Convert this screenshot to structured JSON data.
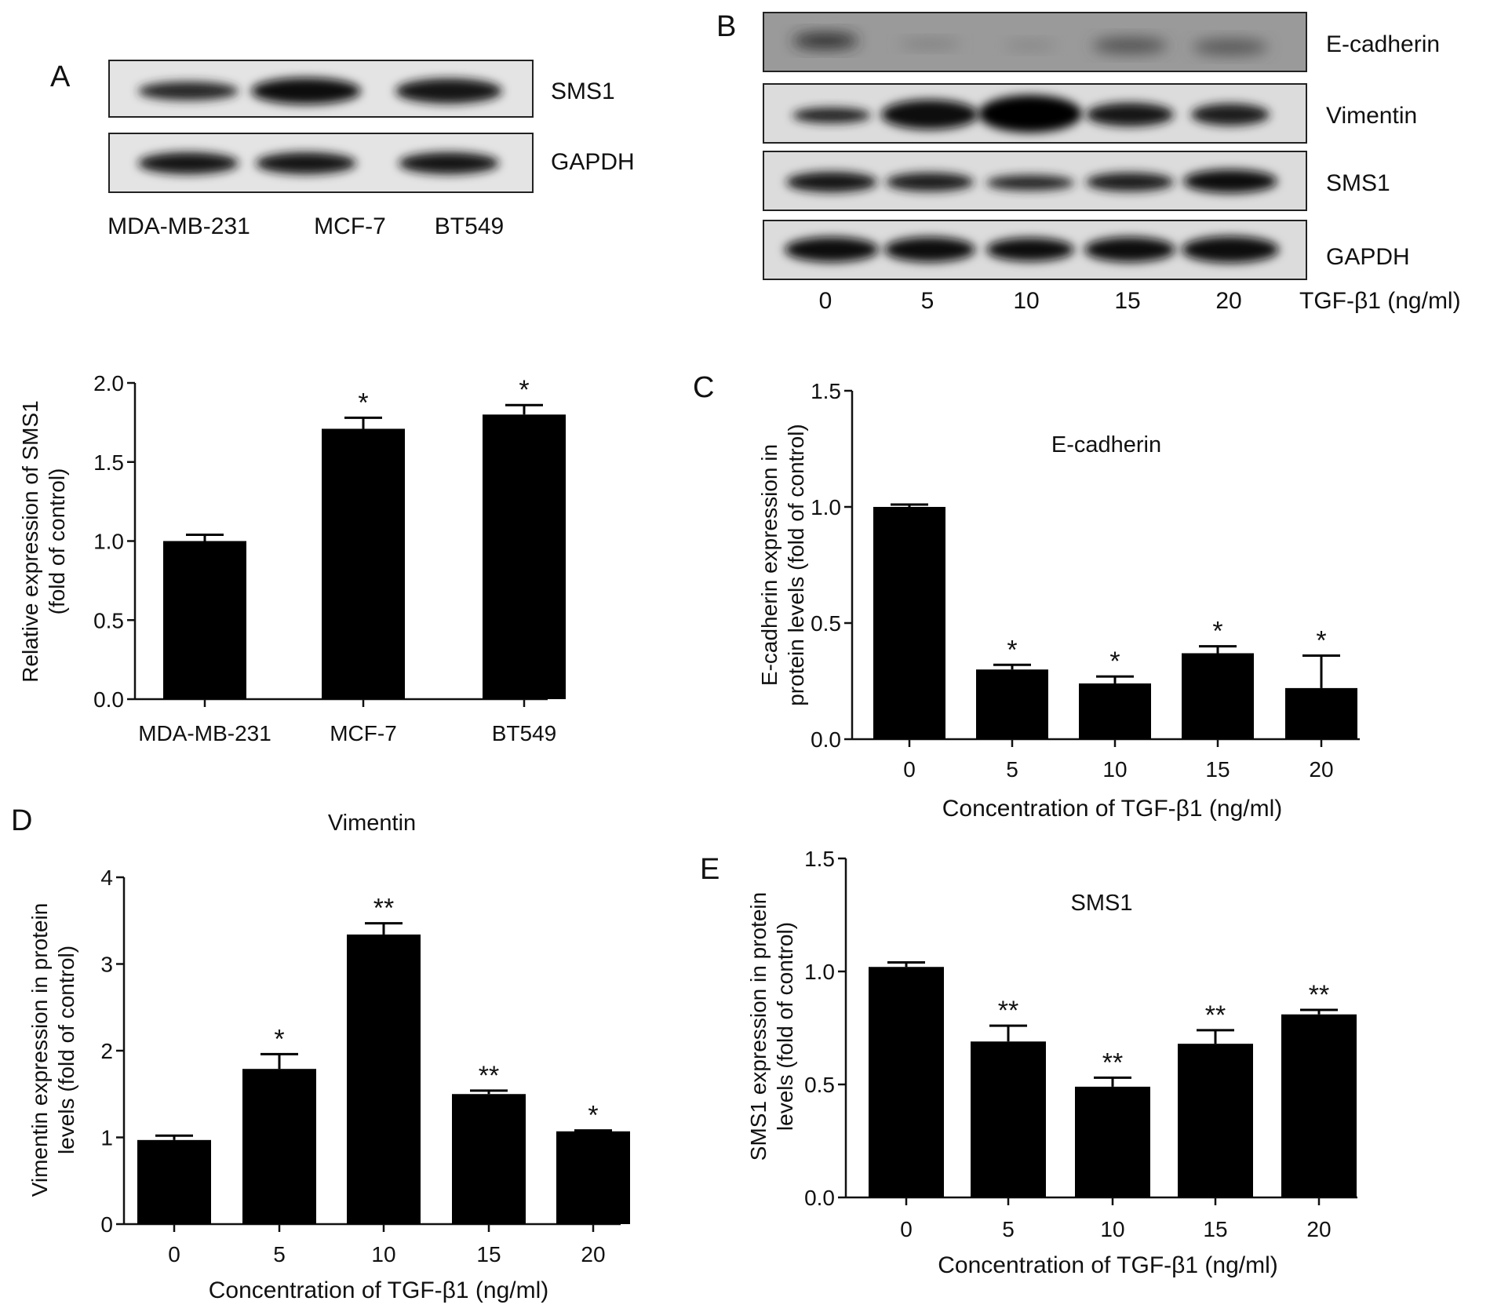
{
  "panel_letters": [
    "A",
    "B",
    "C",
    "D",
    "E"
  ],
  "blot_a": {
    "bands": [
      "SMS1",
      "GAPDH"
    ],
    "lanes": [
      "MDA-MB-231",
      "MCF-7",
      "BT549"
    ]
  },
  "blot_b": {
    "bands": [
      "E-cadherin",
      "Vimentin",
      "SMS1",
      "GAPDH"
    ],
    "lanes": [
      "0",
      "5",
      "10",
      "15",
      "20"
    ],
    "treatment_label": "TGF-β1 (ng/ml)"
  },
  "chart_data": [
    {
      "panel": "A",
      "type": "bar",
      "title": "",
      "xlabel": "",
      "ylabel": "Relative expression of SMS1 (fold of control)",
      "categories": [
        "MDA-MB-231",
        "MCF-7",
        "BT549"
      ],
      "values": [
        1.0,
        1.71,
        1.8
      ],
      "errors": [
        0.04,
        0.07,
        0.06
      ],
      "significance": [
        "",
        "*",
        "*"
      ],
      "ylim": [
        0,
        2.0
      ],
      "yticks": [
        "0.0",
        "0.5",
        "1.0",
        "1.5",
        "2.0"
      ]
    },
    {
      "panel": "C",
      "type": "bar",
      "title": "E-cadherin",
      "xlabel": "Concentration of TGF-β1 (ng/ml)",
      "ylabel": "E-cadherin expression in protein levels (fold of control)",
      "categories": [
        "0",
        "5",
        "10",
        "15",
        "20"
      ],
      "values": [
        1.0,
        0.3,
        0.24,
        0.37,
        0.22
      ],
      "errors": [
        0.01,
        0.02,
        0.03,
        0.03,
        0.14
      ],
      "significance": [
        "",
        "*",
        "*",
        "*",
        "*"
      ],
      "ylim": [
        0,
        1.5
      ],
      "yticks": [
        "0.0",
        "0.5",
        "1.0",
        "1.5"
      ]
    },
    {
      "panel": "D",
      "type": "bar",
      "title": "Vimentin",
      "xlabel": "Concentration of TGF-β1 (ng/ml)",
      "ylabel": "Vimentin expression in protein levels (fold of control)",
      "categories": [
        "0",
        "5",
        "10",
        "15",
        "20"
      ],
      "values": [
        0.97,
        1.79,
        3.34,
        1.5,
        1.07
      ],
      "errors": [
        0.05,
        0.17,
        0.13,
        0.04,
        0.01
      ],
      "significance": [
        "",
        "*",
        "**",
        "**",
        "*"
      ],
      "ylim": [
        0,
        4
      ],
      "yticks": [
        "0",
        "1",
        "2",
        "3",
        "4"
      ]
    },
    {
      "panel": "E",
      "type": "bar",
      "title": "SMS1",
      "xlabel": "Concentration of TGF-β1 (ng/ml)",
      "ylabel": "SMS1 expression in protein levels (fold of control)",
      "categories": [
        "0",
        "5",
        "10",
        "15",
        "20"
      ],
      "values": [
        1.02,
        0.69,
        0.49,
        0.68,
        0.81
      ],
      "errors": [
        0.02,
        0.07,
        0.04,
        0.06,
        0.02
      ],
      "significance": [
        "",
        "**",
        "**",
        "**",
        "**"
      ],
      "ylim": [
        0,
        1.5
      ],
      "yticks": [
        "0.0",
        "0.5",
        "1.0",
        "1.5"
      ]
    }
  ]
}
